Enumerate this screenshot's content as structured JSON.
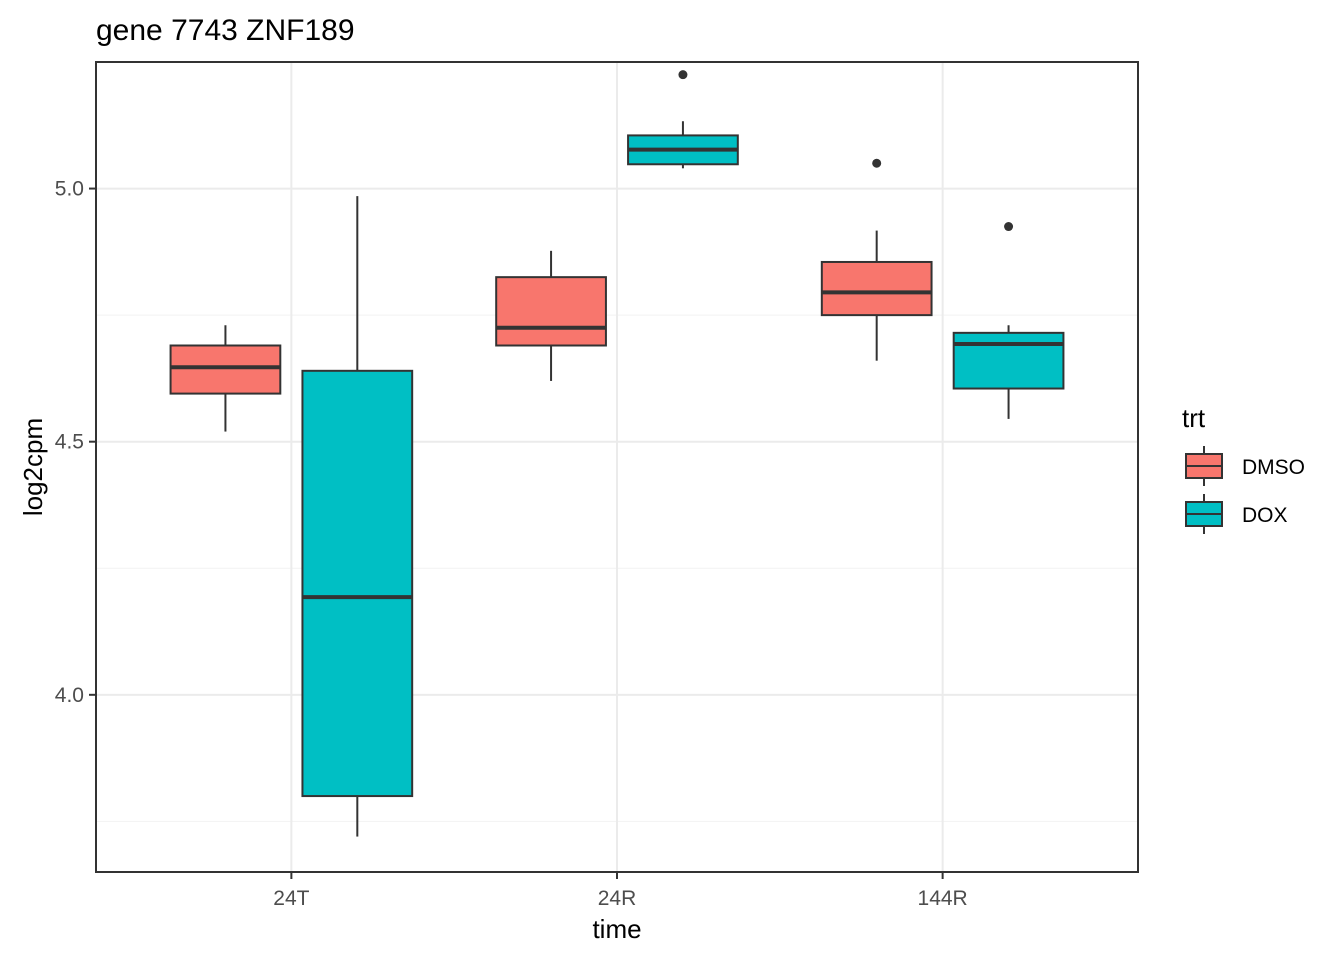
{
  "chart_data": {
    "type": "boxplot",
    "title": "gene 7743 ZNF189",
    "xlabel": "time",
    "ylabel": "log2cpm",
    "categories": [
      "24T",
      "24R",
      "144R"
    ],
    "ylim": [
      3.65,
      5.25
    ],
    "yticks": [
      4.0,
      4.5,
      5.0
    ],
    "ytick_labels": [
      "4.0",
      "4.5",
      "5.0"
    ],
    "grid": true,
    "legend": {
      "title": "trt",
      "placement": "right"
    },
    "series": [
      {
        "name": "DMSO",
        "color": "#F8766D",
        "boxes": [
          {
            "category": "24T",
            "whisker_low": 4.52,
            "q1": 4.595,
            "median": 4.647,
            "q3": 4.69,
            "whisker_high": 4.73,
            "outliers": []
          },
          {
            "category": "24R",
            "whisker_low": 4.62,
            "q1": 4.69,
            "median": 4.725,
            "q3": 4.825,
            "whisker_high": 4.877,
            "outliers": []
          },
          {
            "category": "144R",
            "whisker_low": 4.66,
            "q1": 4.75,
            "median": 4.795,
            "q3": 4.855,
            "whisker_high": 4.917,
            "outliers": [
              5.05
            ]
          }
        ]
      },
      {
        "name": "DOX",
        "color": "#00BFC4",
        "boxes": [
          {
            "category": "24T",
            "whisker_low": 3.72,
            "q1": 3.8,
            "median": 4.193,
            "q3": 4.64,
            "whisker_high": 4.985,
            "outliers": []
          },
          {
            "category": "24R",
            "whisker_low": 5.04,
            "q1": 5.048,
            "median": 5.077,
            "q3": 5.105,
            "whisker_high": 5.133,
            "outliers": [
              5.225
            ]
          },
          {
            "category": "144R",
            "whisker_low": 4.545,
            "q1": 4.605,
            "median": 4.693,
            "q3": 4.715,
            "whisker_high": 4.73,
            "outliers": [
              4.925
            ]
          }
        ]
      }
    ]
  }
}
